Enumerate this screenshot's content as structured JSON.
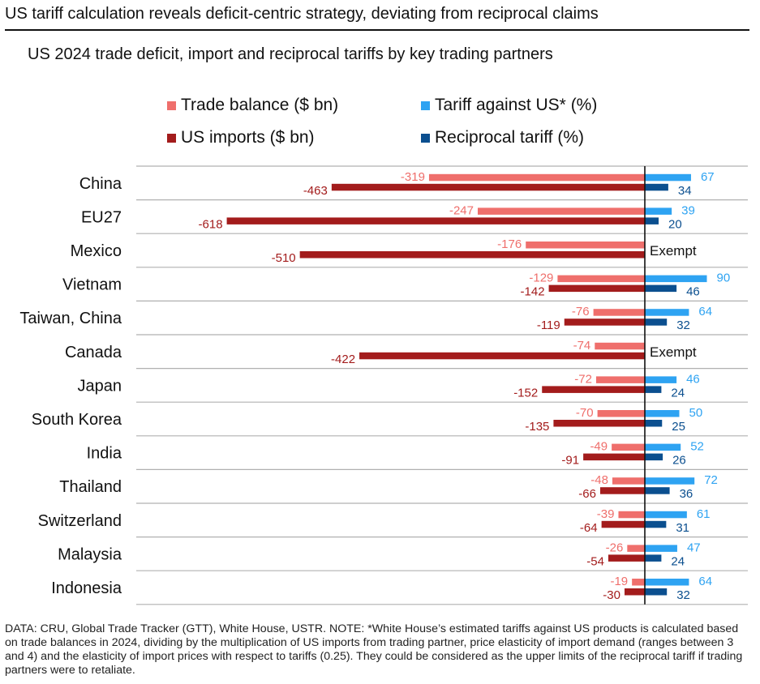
{
  "header": {
    "headline": "US tariff calculation reveals deficit-centric strategy, deviating from reciprocal claims",
    "subtitle": "US 2024 trade deficit, import and reciprocal tariffs by key trading partners"
  },
  "colors": {
    "trade_balance": "#ef6f6c",
    "us_imports": "#a31c1c",
    "tariff_against_us": "#2ea3f2",
    "reciprocal_tariff": "#0b4f8f",
    "gridline": "#b0b0b0",
    "axis": "#111111"
  },
  "chart_data": {
    "type": "bar",
    "orientation": "horizontal",
    "categories": [
      "China",
      "EU27",
      "Mexico",
      "Vietnam",
      "Taiwan, China",
      "Canada",
      "Japan",
      "South Korea",
      "India",
      "Thailand",
      "Switzerland",
      "Malaysia",
      "Indonesia"
    ],
    "series": [
      {
        "name": "Trade balance ($ bn)",
        "values": [
          -319,
          -247,
          -176,
          -129,
          -76,
          -74,
          -72,
          -70,
          -49,
          -48,
          -39,
          -26,
          -19
        ]
      },
      {
        "name": "US imports ($ bn)",
        "values": [
          -463,
          -618,
          -510,
          -142,
          -119,
          -422,
          -152,
          -135,
          -91,
          -66,
          -64,
          -54,
          -30
        ]
      },
      {
        "name": "Tariff against US* (%)",
        "values": [
          67,
          39,
          null,
          90,
          64,
          null,
          46,
          50,
          52,
          72,
          61,
          47,
          64
        ]
      },
      {
        "name": "Reciprocal tariff (%)",
        "values": [
          34,
          20,
          null,
          46,
          32,
          null,
          24,
          25,
          26,
          36,
          31,
          24,
          32
        ]
      }
    ],
    "exempt_label": "Exempt",
    "legend_position": "top",
    "left_axis_unit": "$ bn",
    "right_axis_unit": "%"
  },
  "footer": {
    "note": "DATA: CRU, Global Trade Tracker (GTT), White House, USTR. NOTE: *White House’s estimated tariffs against US products is calculated based on trade balances in 2024, dividing by the multiplication of US imports from trading partner, price elasticity of import demand (ranges between 3 and 4) and the elasticity of import prices with respect to tariffs (0.25). They could be considered as the upper limits of the reciprocal tariff if trading partners were to retaliate."
  }
}
